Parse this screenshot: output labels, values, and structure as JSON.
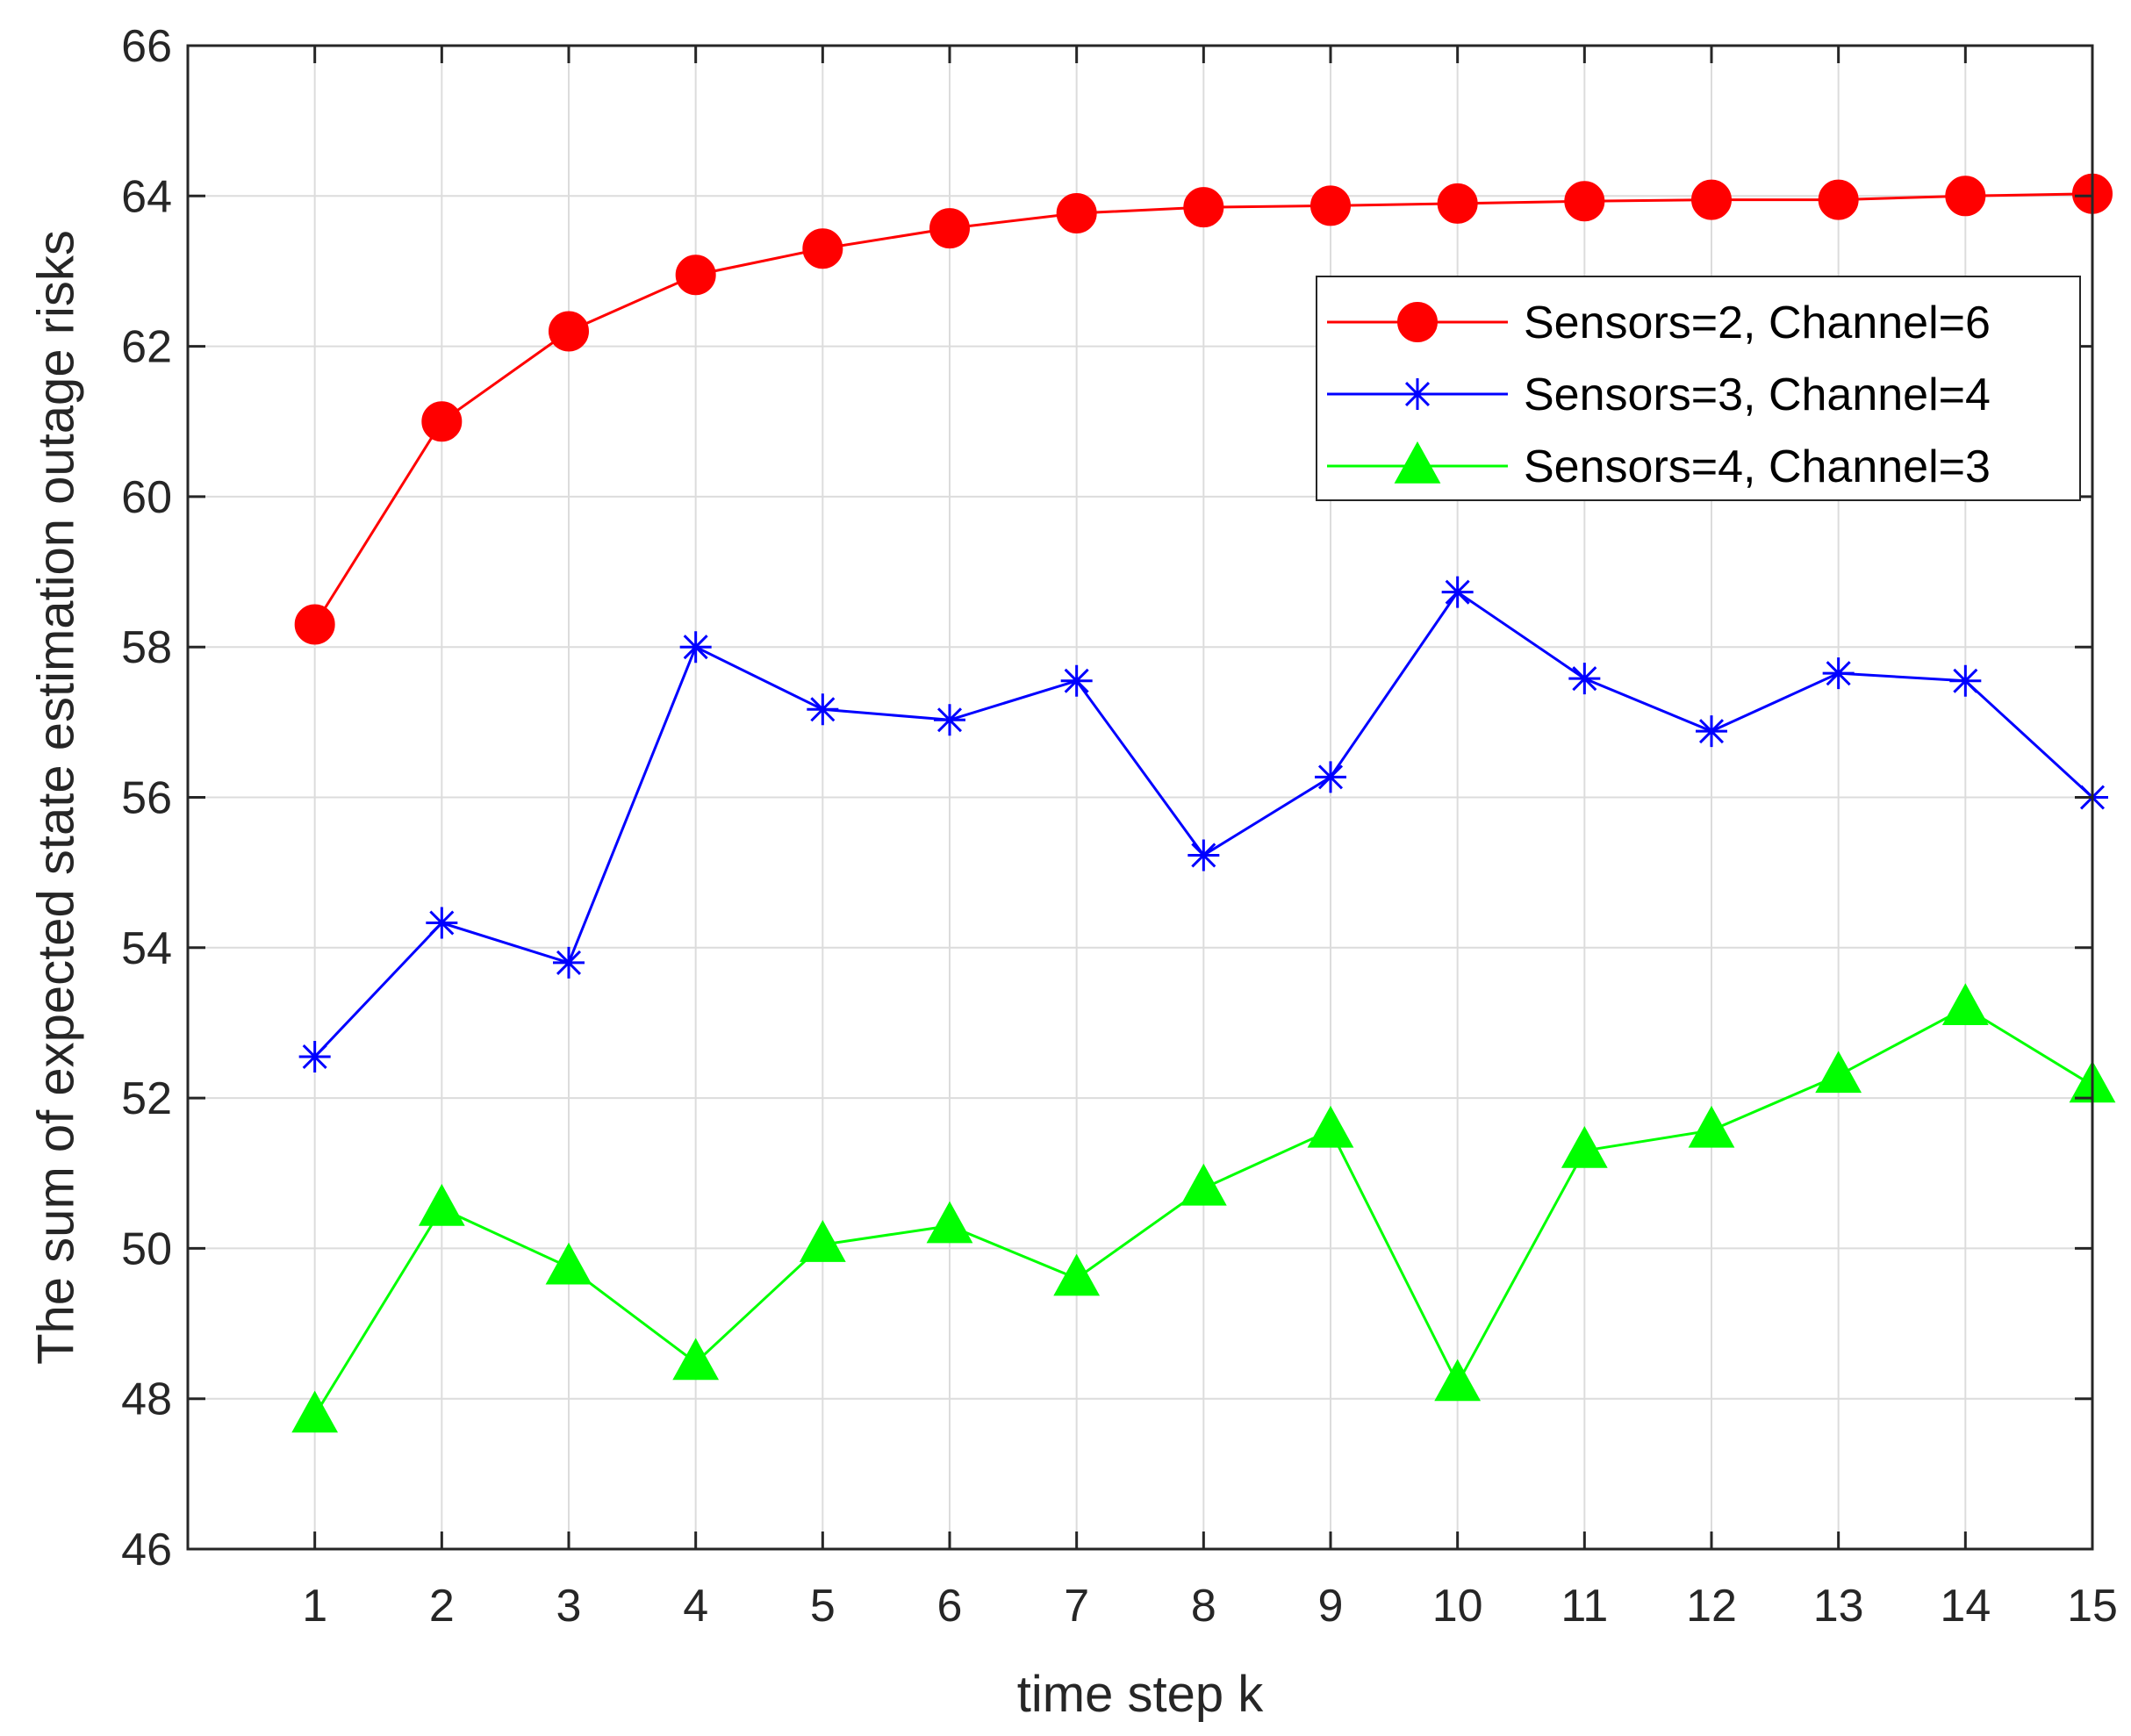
{
  "chart_data": {
    "type": "line",
    "xlabel": "time step k",
    "ylabel": "The sum of expected state estimation outage risks",
    "xlim": [
      0,
      15
    ],
    "ylim": [
      46,
      66
    ],
    "xticks": [
      1,
      2,
      3,
      4,
      5,
      6,
      7,
      8,
      9,
      10,
      11,
      12,
      13,
      14,
      15
    ],
    "yticks": [
      46,
      48,
      50,
      52,
      54,
      56,
      58,
      60,
      62,
      64,
      66
    ],
    "grid": true,
    "legend_position": "top-right",
    "x": [
      1,
      2,
      3,
      4,
      5,
      6,
      7,
      8,
      9,
      10,
      11,
      12,
      13,
      14,
      15
    ],
    "series": [
      {
        "name": "Sensors=2, Channel=6",
        "color": "#ff0000",
        "marker": "circle",
        "values": [
          58.3,
          61.0,
          62.2,
          62.95,
          63.3,
          63.57,
          63.77,
          63.85,
          63.87,
          63.9,
          63.93,
          63.95,
          63.95,
          64.0,
          64.03
        ]
      },
      {
        "name": "Sensors=3, Channel=4",
        "color": "#0000ff",
        "marker": "asterisk",
        "values": [
          52.55,
          54.33,
          53.8,
          58.0,
          57.17,
          57.03,
          57.55,
          55.23,
          56.27,
          58.73,
          57.58,
          56.88,
          57.65,
          57.55,
          56.0
        ]
      },
      {
        "name": "Sensors=4, Channel=3",
        "color": "#00ff00",
        "marker": "triangle",
        "values": [
          47.78,
          50.53,
          49.75,
          48.48,
          50.05,
          50.3,
          49.6,
          50.8,
          51.57,
          48.2,
          51.3,
          51.57,
          52.3,
          53.2,
          52.17
        ]
      }
    ]
  }
}
